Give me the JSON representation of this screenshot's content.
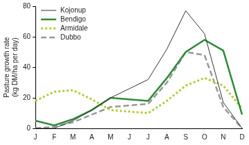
{
  "chart_data": {
    "type": "line",
    "ylabel": [
      "Pasture growth rate",
      "(kg DM/ha per day)"
    ],
    "categories": [
      "J",
      "F",
      "M",
      "A",
      "M",
      "J",
      "J",
      "A",
      "S",
      "O",
      "N",
      "D"
    ],
    "series": [
      {
        "name": "Kojonup",
        "color": "#333333",
        "line_style": "solid",
        "values": [
          0,
          0,
          5,
          12,
          20,
          26,
          32,
          52,
          77,
          62,
          17,
          0
        ]
      },
      {
        "name": "Bendigo",
        "color": "#2e8b3a",
        "line_style": "solid",
        "values": [
          5,
          2,
          6,
          12,
          20,
          19,
          18,
          33,
          50,
          58,
          51,
          9
        ]
      },
      {
        "name": "Armidale",
        "color": "#b5cc3a",
        "line_style": "dotted",
        "values": [
          18,
          24,
          25,
          19,
          12,
          11,
          10,
          18,
          28,
          33,
          28,
          13
        ]
      },
      {
        "name": "Dubbo",
        "color": "#999999",
        "line_style": "dashed",
        "values": [
          0,
          1,
          4,
          9,
          14,
          15,
          16,
          30,
          50,
          48,
          14,
          0
        ]
      }
    ],
    "ylim": [
      0,
      80
    ],
    "yticks": [
      0,
      20,
      40,
      60,
      80
    ],
    "grid": false,
    "legend": "upper left"
  }
}
